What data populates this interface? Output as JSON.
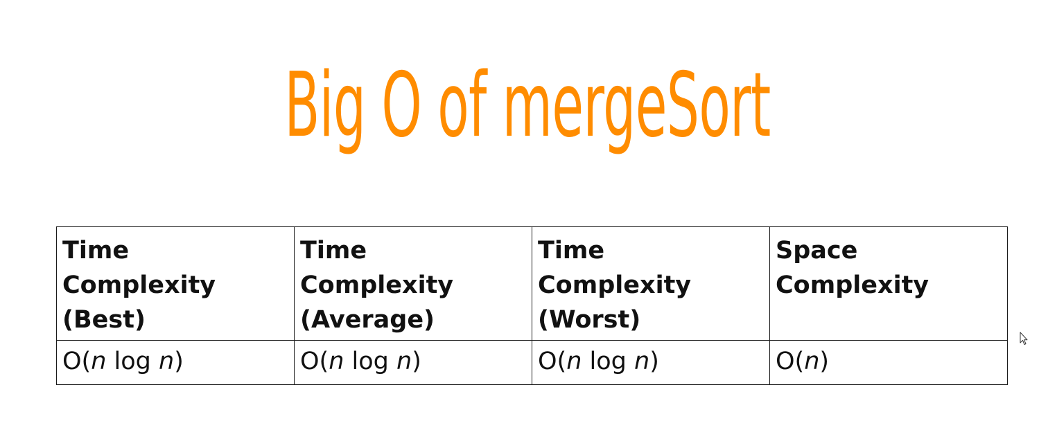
{
  "slide": {
    "title": "Big O of mergeSort"
  },
  "table": {
    "headers": [
      {
        "lines": [
          "Time",
          "Complexity",
          "(Best)"
        ]
      },
      {
        "lines": [
          "Time",
          "Complexity",
          "(Average)"
        ]
      },
      {
        "lines": [
          "Time",
          "Complexity",
          "(Worst)"
        ]
      },
      {
        "lines": [
          "Space",
          "Complexity"
        ]
      }
    ],
    "values": [
      {
        "prefix": "O(",
        "var1": "n",
        "mid": " log ",
        "var2": "n",
        "suffix": ")"
      },
      {
        "prefix": "O(",
        "var1": "n",
        "mid": " log ",
        "var2": "n",
        "suffix": ")"
      },
      {
        "prefix": "O(",
        "var1": "n",
        "mid": " log ",
        "var2": "n",
        "suffix": ")"
      },
      {
        "prefix": "O(",
        "var1": "n",
        "mid": "",
        "var2": "",
        "suffix": ")"
      }
    ]
  },
  "colors": {
    "title": "#ff8c00",
    "text": "#111111",
    "border": "#1a1a1a"
  },
  "icons": {
    "cursor": "mouse-pointer-icon"
  }
}
